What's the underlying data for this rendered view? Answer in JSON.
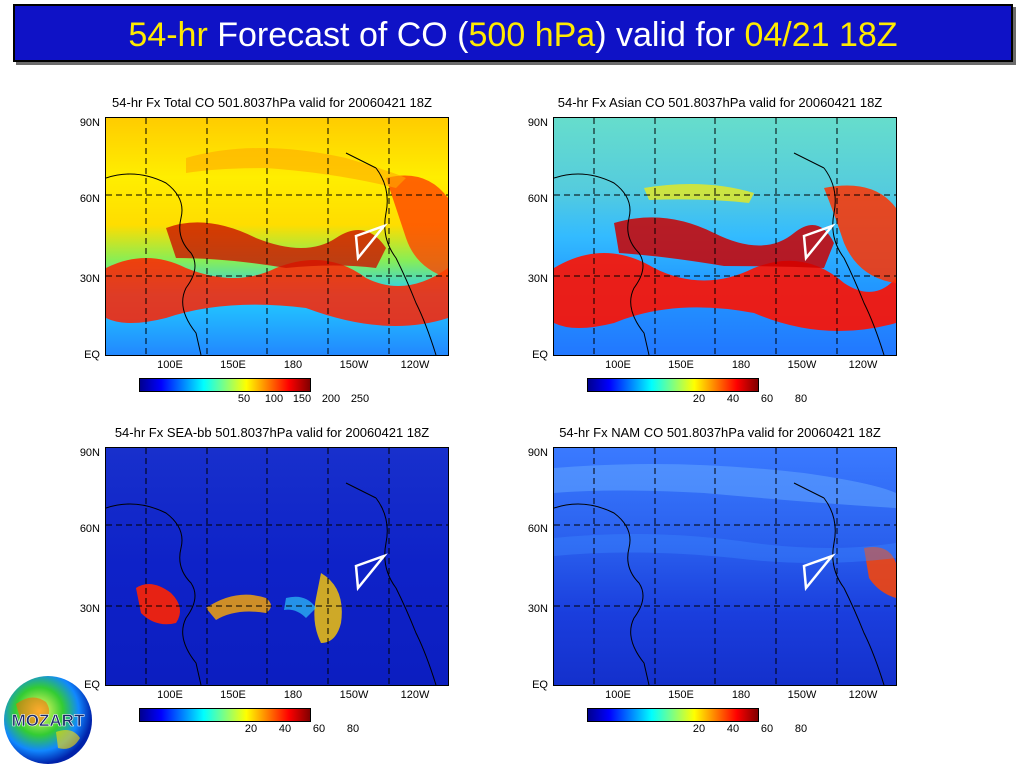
{
  "header": {
    "t1": "54-hr",
    "t2": " Forecast of CO (",
    "t3": "500 hPa",
    "t4": ") valid for ",
    "t5": "04/21 18Z"
  },
  "panels": [
    {
      "title": "54-hr Fx Total CO 501.8037hPa valid for 20060421 18Z",
      "colorbar_ticks": [
        "50",
        "100",
        "150",
        "200",
        "250"
      ]
    },
    {
      "title": "54-hr Fx Asian CO 501.8037hPa valid for 20060421 18Z",
      "colorbar_ticks": [
        "20",
        "40",
        "60",
        "80"
      ]
    },
    {
      "title": "54-hr Fx SEA-bb 501.8037hPa valid for 20060421 18Z",
      "colorbar_ticks": [
        "20",
        "40",
        "60",
        "80"
      ]
    },
    {
      "title": "54-hr Fx NAM CO 501.8037hPa valid for 20060421 18Z",
      "colorbar_ticks": [
        "20",
        "40",
        "60",
        "80"
      ]
    }
  ],
  "lat_labels": [
    "90N",
    "60N",
    "30N",
    "EQ"
  ],
  "lon_labels": [
    "100E",
    "150E",
    "180",
    "150W",
    "120W"
  ],
  "logo_text": "MOZART",
  "colors": {
    "banner": "#0f12c6",
    "highlight": "#ffea00",
    "scale": [
      "#00008f",
      "#0000ff",
      "#0080ff",
      "#00ffff",
      "#80ff80",
      "#ffff00",
      "#ff8000",
      "#ff0000",
      "#800000"
    ]
  }
}
